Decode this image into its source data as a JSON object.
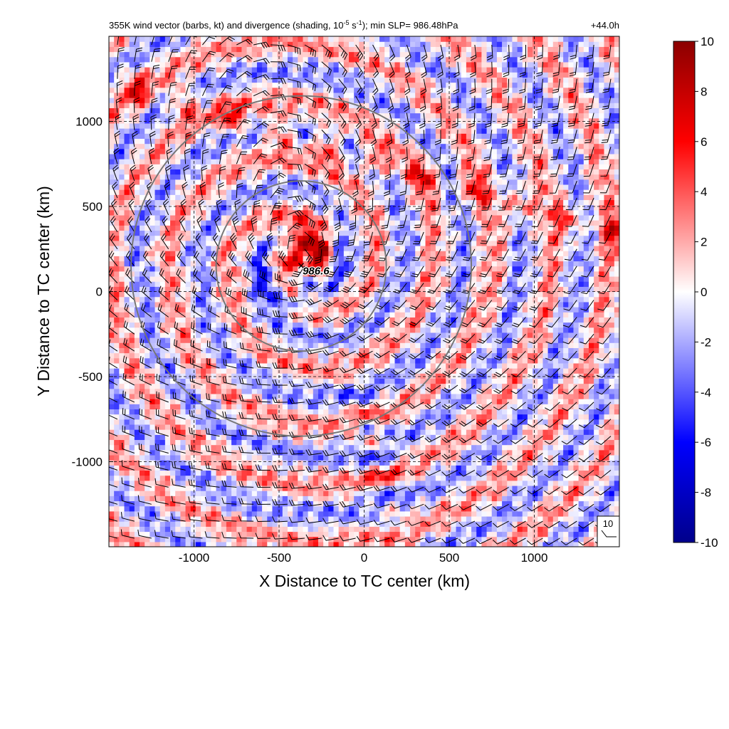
{
  "chart_data": {
    "type": "heatmap",
    "title": "355K wind vector (barbs, kt) and divergence (shading, 10",
    "title_sup": "-5",
    "title_mid": " s",
    "title_sup2": "-1",
    "title_end": "); min SLP= 986.48hPa",
    "forecast_time": "+44.0h",
    "xlabel": "X Distance to TC center (km)",
    "ylabel": "Y Distance to TC center (km)",
    "xlim": [
      -1500,
      1500
    ],
    "ylim": [
      -1500,
      1500
    ],
    "xticks": [
      -1000,
      -500,
      0,
      500,
      1000
    ],
    "yticks": [
      -1000,
      -500,
      0,
      500,
      1000
    ],
    "grid": "dashed",
    "colorbar": {
      "ticks": [
        -10,
        -8,
        -6,
        -4,
        -2,
        0,
        2,
        4,
        6,
        8,
        10
      ],
      "range": [
        -10,
        10
      ],
      "colors": [
        "#00008b",
        "#0000ff",
        "#ffffff",
        "#ff0000",
        "#8b0000"
      ]
    },
    "center_marker": {
      "symbol": "×",
      "label": "986.6",
      "x": -370,
      "y": 150
    },
    "range_circles": [
      {
        "center_x": -370,
        "center_y": 150,
        "radius_km": 500
      },
      {
        "center_x": -370,
        "center_y": 150,
        "radius_km": 1000
      }
    ],
    "reference_barb": {
      "label": "10"
    }
  }
}
